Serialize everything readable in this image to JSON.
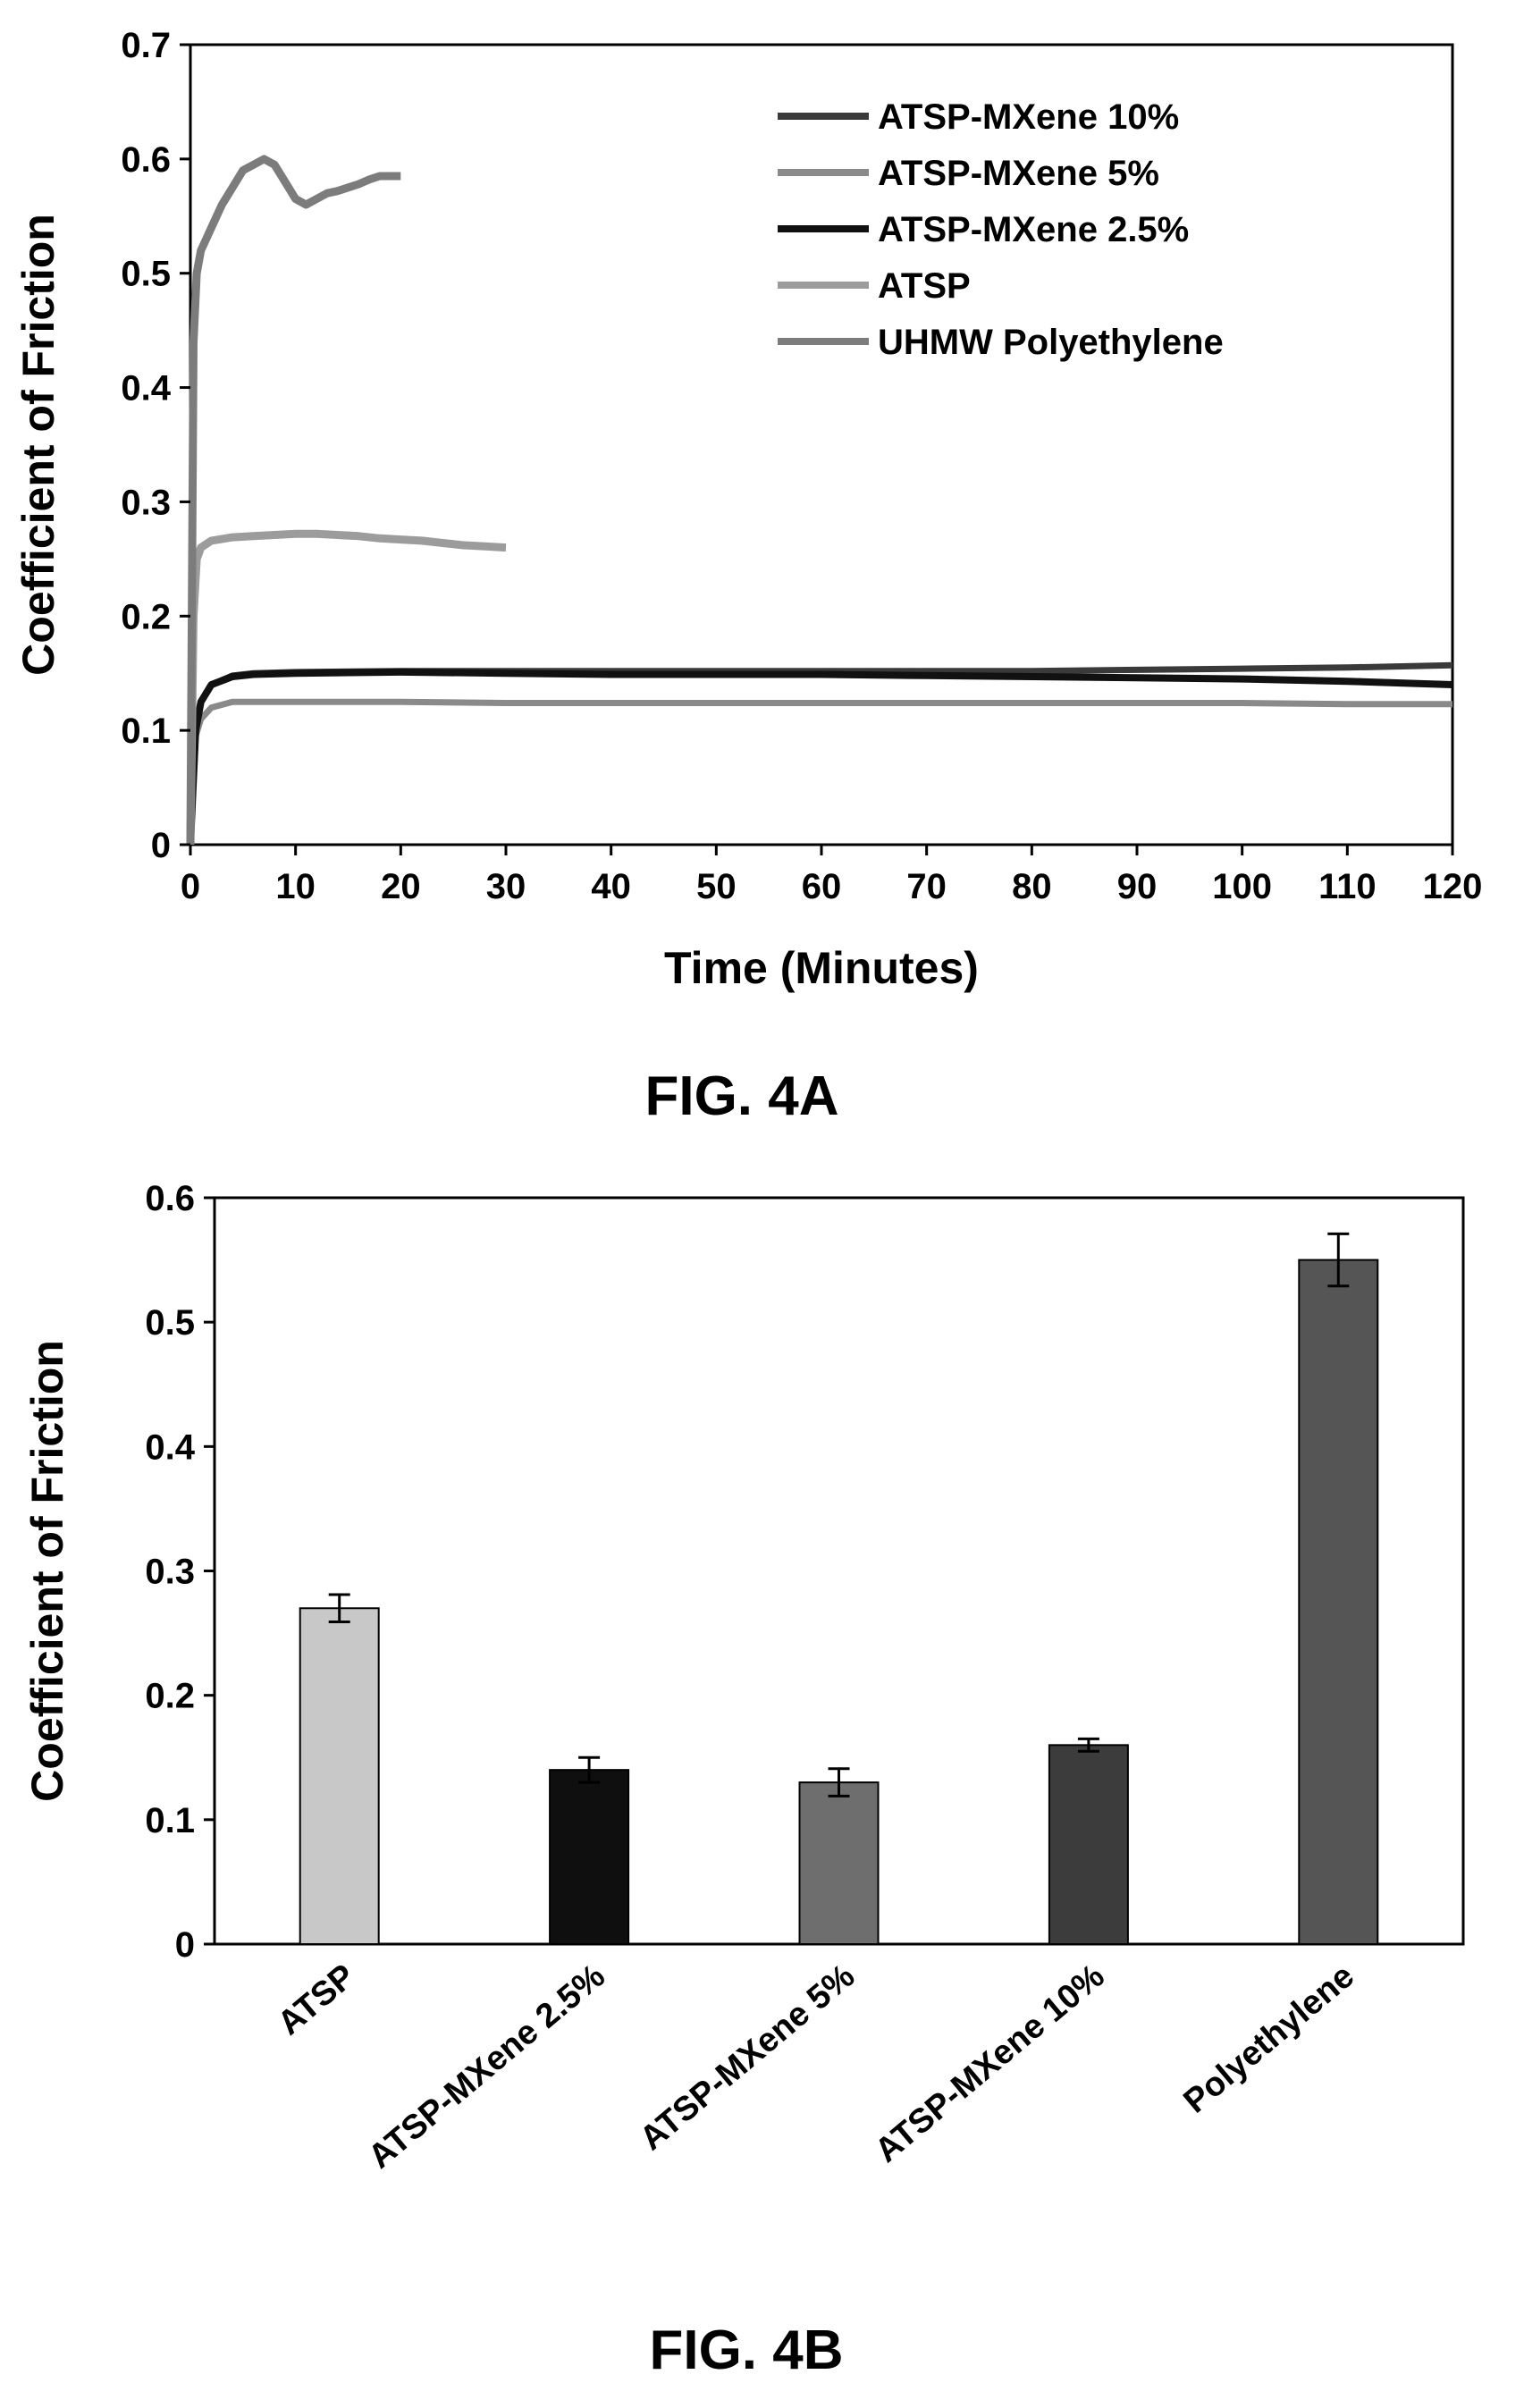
{
  "figure_a_caption": "FIG. 4A",
  "figure_b_caption": "FIG. 4B",
  "chart_data": [
    {
      "type": "line",
      "title": "",
      "xlabel": "Time (Minutes)",
      "ylabel": "Coefficient of Friction",
      "xlim": [
        0,
        120
      ],
      "ylim": [
        0,
        0.7
      ],
      "xticks": [
        0,
        10,
        20,
        30,
        40,
        50,
        60,
        70,
        80,
        90,
        100,
        110,
        120
      ],
      "yticks": [
        0,
        0.1,
        0.2,
        0.3,
        0.4,
        0.5,
        0.6,
        0.7
      ],
      "yticklabels": [
        "0",
        "0.1",
        "0.2",
        "0.3",
        "0.4",
        "0.5",
        "0.6",
        "0.7"
      ],
      "grid": false,
      "legend_position": "top-right",
      "series": [
        {
          "name": "ATSP-MXene 10%",
          "color": "#3a3a3a",
          "x": [
            0,
            0.5,
            1,
            2,
            4,
            6,
            10,
            20,
            30,
            40,
            50,
            60,
            70,
            80,
            90,
            100,
            110,
            120
          ],
          "y": [
            0.0,
            0.1,
            0.125,
            0.14,
            0.148,
            0.15,
            0.151,
            0.152,
            0.152,
            0.152,
            0.152,
            0.152,
            0.152,
            0.152,
            0.153,
            0.154,
            0.155,
            0.157
          ]
        },
        {
          "name": "ATSP-MXene 5%",
          "color": "#8a8a8a",
          "x": [
            0,
            0.5,
            1,
            2,
            4,
            6,
            10,
            20,
            30,
            40,
            50,
            60,
            70,
            80,
            90,
            100,
            110,
            120
          ],
          "y": [
            0.0,
            0.095,
            0.11,
            0.12,
            0.125,
            0.125,
            0.125,
            0.125,
            0.124,
            0.124,
            0.124,
            0.124,
            0.124,
            0.124,
            0.124,
            0.124,
            0.123,
            0.123
          ]
        },
        {
          "name": "ATSP-MXene 2.5%",
          "color": "#111111",
          "x": [
            0,
            0.5,
            1,
            2,
            4,
            6,
            10,
            20,
            30,
            40,
            50,
            60,
            70,
            80,
            90,
            100,
            110,
            120
          ],
          "y": [
            0.0,
            0.1,
            0.125,
            0.14,
            0.147,
            0.149,
            0.15,
            0.151,
            0.15,
            0.149,
            0.149,
            0.149,
            0.148,
            0.147,
            0.146,
            0.145,
            0.143,
            0.14
          ]
        },
        {
          "name": "ATSP",
          "color": "#9c9c9c",
          "x": [
            0,
            0.3,
            0.6,
            1,
            2,
            4,
            6,
            8,
            10,
            12,
            14,
            16,
            18,
            20,
            22,
            24,
            26,
            28,
            30
          ],
          "y": [
            0.0,
            0.2,
            0.25,
            0.26,
            0.266,
            0.269,
            0.27,
            0.271,
            0.272,
            0.272,
            0.271,
            0.27,
            0.268,
            0.267,
            0.266,
            0.264,
            0.262,
            0.261,
            0.26
          ]
        },
        {
          "name": "UHMW Polyethylene",
          "color": "#7c7c7c",
          "x": [
            0,
            0.3,
            0.6,
            1,
            1.5,
            2,
            3,
            4,
            5,
            6,
            7,
            8,
            9,
            10,
            11,
            12,
            13,
            14,
            15,
            16,
            17,
            18,
            19,
            20
          ],
          "y": [
            0.0,
            0.44,
            0.5,
            0.52,
            0.53,
            0.54,
            0.56,
            0.575,
            0.59,
            0.595,
            0.6,
            0.595,
            0.58,
            0.565,
            0.56,
            0.565,
            0.57,
            0.572,
            0.575,
            0.578,
            0.582,
            0.585,
            0.585,
            0.585
          ]
        }
      ]
    },
    {
      "type": "bar",
      "title": "",
      "xlabel": "",
      "ylabel": "Coefficient of Friction",
      "ylim": [
        0,
        0.6
      ],
      "yticks": [
        0,
        0.1,
        0.2,
        0.3,
        0.4,
        0.5,
        0.6
      ],
      "yticklabels": [
        "0",
        "0.1",
        "0.2",
        "0.3",
        "0.4",
        "0.5",
        "0.6"
      ],
      "grid": false,
      "categories": [
        "ATSP",
        "ATSP-MXene 2.5%",
        "ATSP-MXene 5%",
        "ATSP-MXene 10%",
        "Polyethylene"
      ],
      "values": [
        0.27,
        0.14,
        0.13,
        0.16,
        0.55
      ],
      "errors": [
        0.011,
        0.01,
        0.011,
        0.005,
        0.021
      ],
      "colors": [
        "#c8c8c8",
        "#0f0f0f",
        "#6e6e6e",
        "#3c3c3c",
        "#555555"
      ]
    }
  ]
}
